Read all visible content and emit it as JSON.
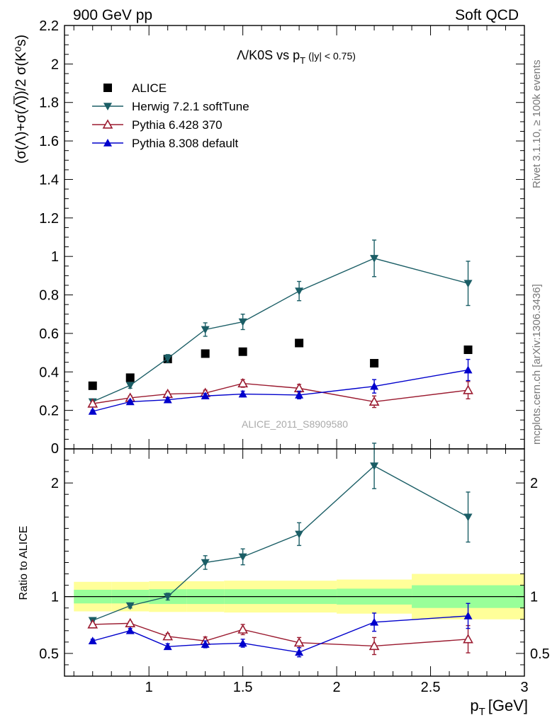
{
  "header": {
    "left": "900 GeV pp",
    "right": "Soft QCD"
  },
  "side_labels": {
    "rivet": "Rivet 3.1.10, ≥ 100k events",
    "mcplots": "mcplots.cern.ch [arXiv:1306.3436]"
  },
  "chart_data": [
    {
      "type": "scatter",
      "title": "Λ/K0S vs p_T (|y| < 0.75)",
      "title_main": "Λ/K0S vs p",
      "title_sub": "T",
      "title_cut": "(|y| < 0.75)",
      "ylabel": "(σ(Λ)+σ(Λ̅))/2 σ(K⁰s)",
      "watermark": "ALICE_2011_S8909580",
      "xlim": [
        0.55,
        3.0
      ],
      "ylim": [
        0,
        2.2
      ],
      "ytick_labels": [
        "0",
        "0.2",
        "0.4",
        "0.6",
        "0.8",
        "1",
        "1.2",
        "1.4",
        "1.6",
        "1.8",
        "2",
        "2.2"
      ],
      "legend_position": "top-left",
      "series": [
        {
          "name": "ALICE",
          "marker": "square",
          "color": "#000000",
          "x": [
            0.7,
            0.9,
            1.1,
            1.3,
            1.5,
            1.8,
            2.2,
            2.7
          ],
          "y": [
            0.328,
            0.37,
            0.467,
            0.495,
            0.505,
            0.55,
            0.445,
            0.515
          ],
          "err": [
            0,
            0,
            0,
            0,
            0,
            0,
            0,
            0
          ]
        },
        {
          "name": "Herwig 7.2.1 softTune",
          "marker": "triangle-down",
          "color": "#1b5e66",
          "x": [
            0.7,
            0.9,
            1.1,
            1.3,
            1.5,
            1.8,
            2.2,
            2.7
          ],
          "y": [
            0.245,
            0.33,
            0.47,
            0.62,
            0.66,
            0.82,
            0.99,
            0.86
          ],
          "err": [
            0.01,
            0.015,
            0.02,
            0.035,
            0.04,
            0.05,
            0.095,
            0.115
          ]
        },
        {
          "name": "Pythia 6.428 370",
          "marker": "triangle-up-open",
          "color": "#9b1b30",
          "x": [
            0.7,
            0.9,
            1.1,
            1.3,
            1.5,
            1.8,
            2.2,
            2.7
          ],
          "y": [
            0.235,
            0.265,
            0.285,
            0.29,
            0.34,
            0.315,
            0.245,
            0.305
          ],
          "err": [
            0.008,
            0.01,
            0.012,
            0.015,
            0.02,
            0.02,
            0.03,
            0.045
          ]
        },
        {
          "name": "Pythia 8.308 default",
          "marker": "triangle-up",
          "color": "#0000cc",
          "x": [
            0.7,
            0.9,
            1.1,
            1.3,
            1.5,
            1.8,
            2.2,
            2.7
          ],
          "y": [
            0.195,
            0.245,
            0.255,
            0.275,
            0.285,
            0.28,
            0.325,
            0.41
          ],
          "err": [
            0.006,
            0.008,
            0.01,
            0.012,
            0.015,
            0.02,
            0.035,
            0.055
          ]
        }
      ]
    },
    {
      "type": "scatter",
      "title": "",
      "ylabel": "Ratio to ALICE",
      "xlabel_main": "p",
      "xlabel_sub": "T",
      "xlabel_unit": "[GeV]",
      "xlim": [
        0.55,
        3.0
      ],
      "ylim": [
        0.3,
        2.3
      ],
      "xtick_labels": [
        "1",
        "1.5",
        "2",
        "2.5",
        "3"
      ],
      "ytick_labels": [
        "0.5",
        "1",
        "2"
      ],
      "bands": {
        "x_edges": [
          0.6,
          0.8,
          1.0,
          1.2,
          1.4,
          2.0,
          2.4,
          3.0
        ],
        "green_half_width": [
          0.06,
          0.06,
          0.065,
          0.065,
          0.065,
          0.07,
          0.1
        ],
        "yellow_half_width": [
          0.13,
          0.13,
          0.135,
          0.135,
          0.14,
          0.15,
          0.2
        ],
        "green_color": "#99ff99",
        "yellow_color": "#ffff99"
      },
      "series": [
        {
          "name": "Herwig 7.2.1 softTune",
          "marker": "triangle-down",
          "color": "#1b5e66",
          "x": [
            0.7,
            0.9,
            1.1,
            1.3,
            1.5,
            1.8,
            2.2,
            2.7
          ],
          "y": [
            0.79,
            0.92,
            1.0,
            1.3,
            1.35,
            1.55,
            2.15,
            1.7
          ],
          "err": [
            0.01,
            0.02,
            0.03,
            0.06,
            0.07,
            0.1,
            0.2,
            0.22
          ]
        },
        {
          "name": "Pythia 6.428 370",
          "marker": "triangle-up-open",
          "color": "#9b1b30",
          "x": [
            0.7,
            0.9,
            1.1,
            1.3,
            1.5,
            1.8,
            2.2,
            2.7
          ],
          "y": [
            0.755,
            0.765,
            0.65,
            0.61,
            0.71,
            0.595,
            0.565,
            0.625
          ],
          "err": [
            0.01,
            0.015,
            0.025,
            0.035,
            0.045,
            0.045,
            0.075,
            0.12
          ]
        },
        {
          "name": "Pythia 8.308 default",
          "marker": "triangle-up",
          "color": "#0000cc",
          "x": [
            0.7,
            0.9,
            1.1,
            1.3,
            1.5,
            1.8,
            2.2,
            2.7
          ],
          "y": [
            0.61,
            0.7,
            0.56,
            0.58,
            0.59,
            0.51,
            0.775,
            0.83
          ],
          "err": [
            0.015,
            0.02,
            0.025,
            0.03,
            0.035,
            0.04,
            0.08,
            0.11
          ]
        }
      ]
    }
  ]
}
